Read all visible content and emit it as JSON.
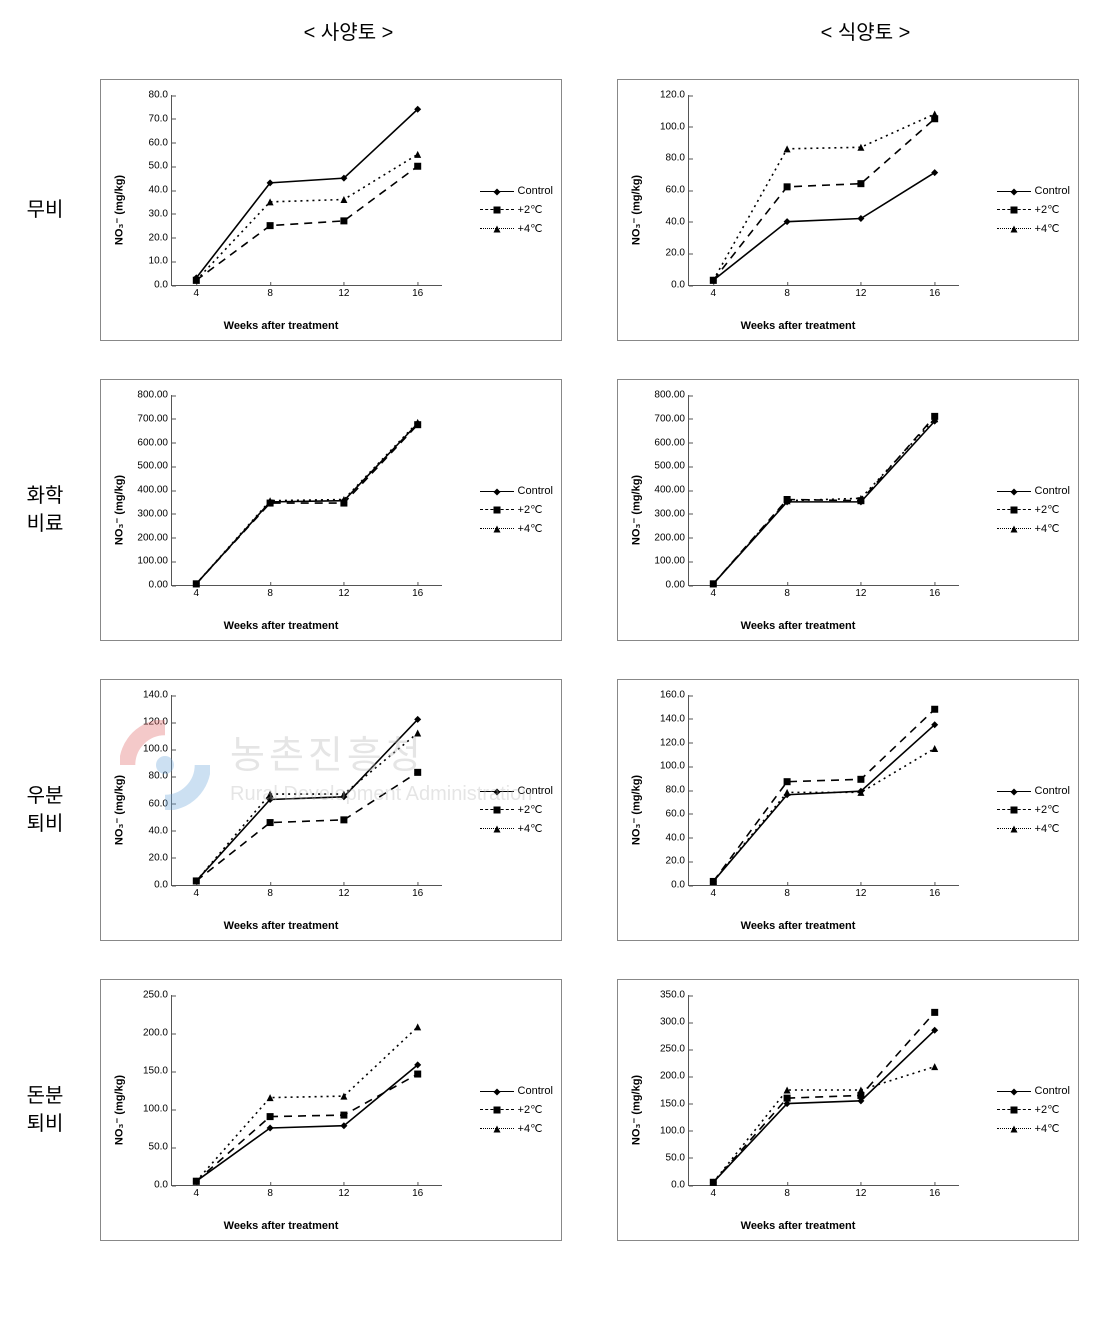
{
  "columnHeaders": {
    "left": "< 사양토 >",
    "right": "< 식양토 >"
  },
  "rowLabels": [
    "무비",
    "화학\n비료",
    "우분\n퇴비",
    "돈분\n퇴비"
  ],
  "axis": {
    "x": {
      "label": "Weeks after treatment",
      "ticks": [
        4,
        8,
        12,
        16
      ]
    },
    "y_label": "NO₃⁻ (mg/kg)"
  },
  "legend": {
    "items": [
      {
        "key": "control",
        "label": "Control",
        "marker": "diamond",
        "dash": "none"
      },
      {
        "key": "plus2",
        "label": "+2℃",
        "marker": "square",
        "dash": "8,6"
      },
      {
        "key": "plus4",
        "label": "+4℃",
        "marker": "triangle",
        "dash": "2,4"
      }
    ],
    "color": "#000000",
    "line_width": 1.6,
    "marker_size": 7
  },
  "colors": {
    "axis": "#555555",
    "text": "#000000",
    "background": "#ffffff",
    "watermark_gray": "#b7b7b7",
    "watermark_red": "#e06666",
    "watermark_blue": "#6fa8dc"
  },
  "watermark": {
    "kr": "농촌진흥청",
    "en": "Rural Development Administration"
  },
  "charts": [
    {
      "row": 0,
      "col": 0,
      "ylim": [
        0,
        80
      ],
      "ystep": 10,
      "ydecimals": 1,
      "series": {
        "control": [
          3,
          43,
          45,
          74
        ],
        "plus2": [
          2,
          25,
          27,
          50
        ],
        "plus4": [
          2,
          35,
          36,
          55
        ]
      }
    },
    {
      "row": 0,
      "col": 1,
      "ylim": [
        0,
        120
      ],
      "ystep": 20,
      "ydecimals": 1,
      "series": {
        "control": [
          3,
          40,
          42,
          71
        ],
        "plus2": [
          3,
          62,
          64,
          105
        ],
        "plus4": [
          3,
          86,
          87,
          108
        ]
      }
    },
    {
      "row": 1,
      "col": 0,
      "ylim": [
        0,
        800
      ],
      "ystep": 100,
      "ydecimals": 2,
      "series": {
        "control": [
          5,
          350,
          355,
          680
        ],
        "plus2": [
          5,
          345,
          345,
          675
        ],
        "plus4": [
          5,
          355,
          360,
          685
        ]
      }
    },
    {
      "row": 1,
      "col": 1,
      "ylim": [
        0,
        800
      ],
      "ystep": 100,
      "ydecimals": 2,
      "series": {
        "control": [
          5,
          350,
          350,
          690
        ],
        "plus2": [
          5,
          360,
          355,
          710
        ],
        "plus4": [
          5,
          355,
          365,
          700
        ]
      }
    },
    {
      "row": 2,
      "col": 0,
      "ylim": [
        0,
        140
      ],
      "ystep": 20,
      "ydecimals": 1,
      "series": {
        "control": [
          3,
          63,
          65,
          122
        ],
        "plus2": [
          3,
          46,
          48,
          83
        ],
        "plus4": [
          3,
          67,
          67,
          112
        ]
      }
    },
    {
      "row": 2,
      "col": 1,
      "ylim": [
        0,
        160
      ],
      "ystep": 20,
      "ydecimals": 1,
      "series": {
        "control": [
          3,
          76,
          79,
          135
        ],
        "plus2": [
          3,
          87,
          89,
          148
        ],
        "plus4": [
          3,
          78,
          78,
          115
        ]
      }
    },
    {
      "row": 3,
      "col": 0,
      "ylim": [
        0,
        250
      ],
      "ystep": 50,
      "ydecimals": 1,
      "series": {
        "control": [
          5,
          75,
          78,
          158
        ],
        "plus2": [
          5,
          90,
          92,
          146
        ],
        "plus4": [
          5,
          115,
          117,
          208
        ]
      }
    },
    {
      "row": 3,
      "col": 1,
      "ylim": [
        0,
        350
      ],
      "ystep": 50,
      "ydecimals": 1,
      "series": {
        "control": [
          5,
          150,
          155,
          285
        ],
        "plus2": [
          5,
          160,
          165,
          318
        ],
        "plus4": [
          5,
          175,
          175,
          218
        ]
      }
    }
  ]
}
